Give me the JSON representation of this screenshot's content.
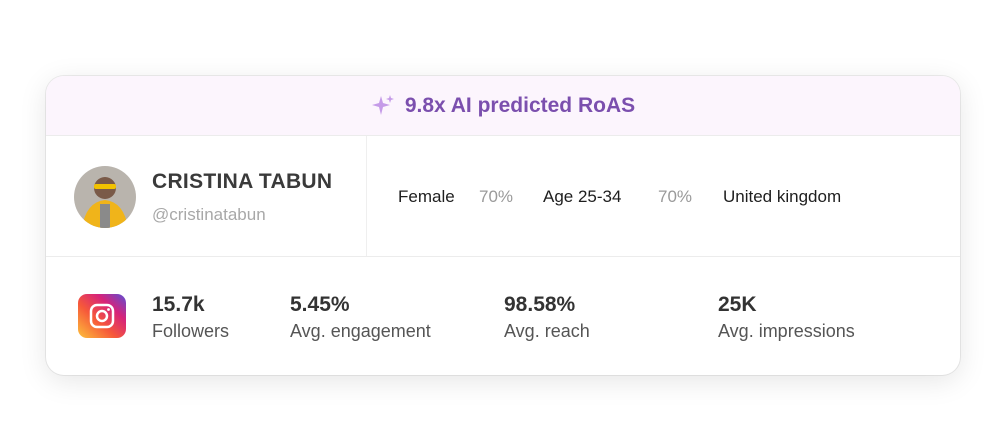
{
  "banner": {
    "text": "9.8x AI predicted RoAS"
  },
  "profile": {
    "name": "CRISTINA TABUN",
    "handle": "@cristinatabun"
  },
  "audience": [
    {
      "label": "Female",
      "value": "70%"
    },
    {
      "label": "Age 25-34",
      "value": "70%"
    },
    {
      "label": "United kingdom"
    }
  ],
  "stats": [
    {
      "value": "15.7k",
      "label": "Followers"
    },
    {
      "value": "5.45%",
      "label": "Avg. engagement"
    },
    {
      "value": "98.58%",
      "label": "Avg. reach"
    },
    {
      "value": "25K",
      "label": "Avg. impressions"
    }
  ]
}
